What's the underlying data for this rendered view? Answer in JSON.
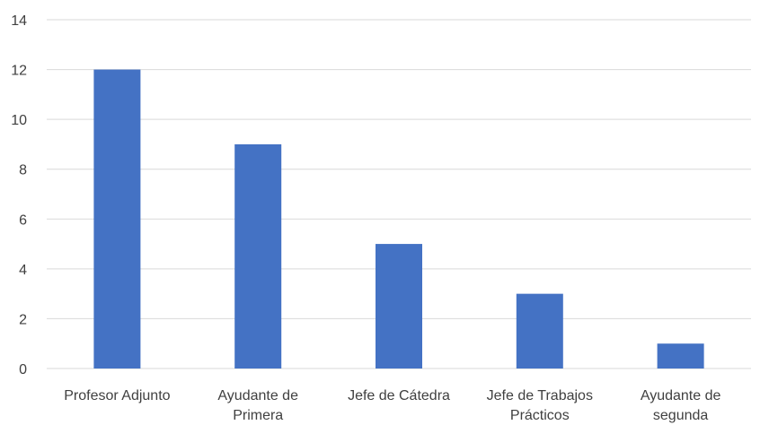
{
  "chart_data": {
    "type": "bar",
    "categories": [
      [
        "Profesor Adjunto"
      ],
      [
        "Ayudante de",
        "Primera"
      ],
      [
        "Jefe de Cátedra"
      ],
      [
        "Jefe de Trabajos",
        "Prácticos"
      ],
      [
        "Ayudante de",
        "segunda"
      ]
    ],
    "values": [
      12,
      9,
      5,
      3,
      1
    ],
    "title": "",
    "xlabel": "",
    "ylabel": "",
    "ylim": [
      0,
      14
    ],
    "yticks": [
      0,
      2,
      4,
      6,
      8,
      10,
      12,
      14
    ],
    "grid": true,
    "legend": "none",
    "colors": {
      "bar": "#4472C4",
      "grid": "#D9D9D9",
      "text": "#404040"
    }
  }
}
